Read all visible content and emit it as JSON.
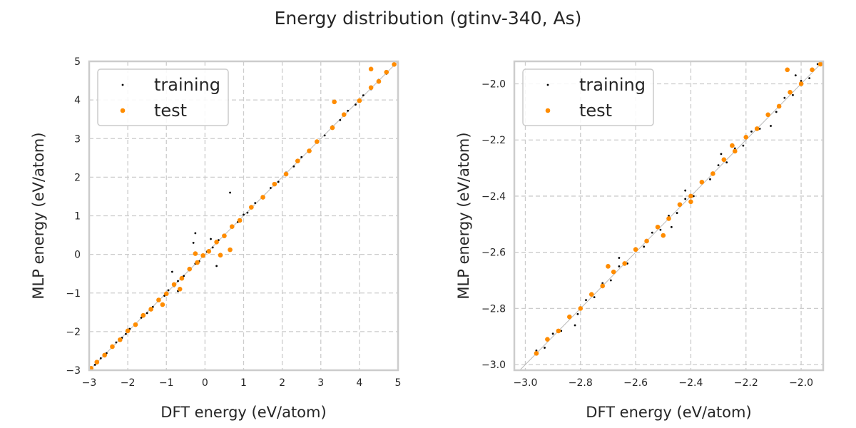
{
  "figure": {
    "title": "Energy distribution (gtinv-340, As)"
  },
  "chart_data": [
    {
      "type": "scatter",
      "xlabel": "DFT energy (eV/atom)",
      "ylabel": "MLP energy (eV/atom)",
      "xlim": [
        -3,
        5
      ],
      "ylim": [
        -3,
        5
      ],
      "xticks": [
        "−3",
        "−2",
        "−1",
        "0",
        "1",
        "2",
        "3",
        "4",
        "5"
      ],
      "yticks": [
        "−3",
        "−2",
        "−1",
        "0",
        "1",
        "2",
        "3",
        "4",
        "5"
      ],
      "grid": true,
      "legend": "upper-left",
      "series": [
        {
          "name": "training",
          "color": "#000000",
          "marker_size": "small",
          "x": [
            -2.95,
            -2.85,
            -2.7,
            -2.55,
            -2.4,
            -2.3,
            -2.15,
            -2.05,
            -1.95,
            -1.8,
            -1.65,
            -1.5,
            -1.35,
            -1.2,
            -1.05,
            -0.95,
            -0.8,
            -0.7,
            -0.55,
            -0.4,
            -0.25,
            -0.15,
            0.05,
            0.2,
            0.35,
            0.5,
            0.7,
            0.85,
            1.0,
            1.1,
            1.3,
            1.5,
            1.7,
            1.9,
            2.1,
            2.3,
            2.5,
            2.7,
            2.9,
            3.1,
            3.3,
            3.5,
            3.7,
            3.9,
            4.1,
            4.3,
            4.5,
            4.7,
            4.9,
            -0.25,
            -0.7,
            0.3,
            0.65,
            -0.85,
            0.15,
            -0.3
          ],
          "y": [
            -2.94,
            -2.86,
            -2.69,
            -2.56,
            -2.41,
            -2.28,
            -2.16,
            -2.06,
            -1.93,
            -1.82,
            -1.64,
            -1.52,
            -1.36,
            -1.18,
            -1.07,
            -0.93,
            -0.82,
            -0.69,
            -0.56,
            -0.41,
            -0.24,
            -0.18,
            0.07,
            0.18,
            0.37,
            0.48,
            0.72,
            0.84,
            1.03,
            1.08,
            1.33,
            1.48,
            1.72,
            1.88,
            2.12,
            2.28,
            2.52,
            2.68,
            2.92,
            3.08,
            3.32,
            3.48,
            3.72,
            3.88,
            4.12,
            4.28,
            4.52,
            4.68,
            4.92,
            0.55,
            -0.95,
            -0.3,
            1.6,
            -0.45,
            0.4,
            0.3
          ]
        },
        {
          "name": "test",
          "color": "#ff8c00",
          "marker_size": "large",
          "x": [
            -2.95,
            -2.8,
            -2.6,
            -2.4,
            -2.2,
            -2.0,
            -1.8,
            -1.6,
            -1.4,
            -1.2,
            -1.0,
            -0.8,
            -0.6,
            -0.4,
            -0.2,
            -0.05,
            0.1,
            0.3,
            0.5,
            0.7,
            0.9,
            1.2,
            1.5,
            1.8,
            2.1,
            2.4,
            2.7,
            2.9,
            3.3,
            3.6,
            4.0,
            4.3,
            4.5,
            4.7,
            4.9,
            -0.25,
            0.65,
            0.4,
            4.3,
            3.35,
            -1.1,
            -0.65
          ],
          "y": [
            -2.95,
            -2.79,
            -2.61,
            -2.39,
            -2.21,
            -1.98,
            -1.82,
            -1.58,
            -1.42,
            -1.18,
            -1.02,
            -0.78,
            -0.62,
            -0.38,
            -0.21,
            -0.03,
            0.08,
            0.32,
            0.48,
            0.72,
            0.88,
            1.22,
            1.48,
            1.82,
            2.08,
            2.42,
            2.68,
            2.92,
            3.28,
            3.62,
            3.98,
            4.32,
            4.48,
            4.72,
            4.92,
            0.02,
            0.12,
            -0.02,
            4.8,
            3.95,
            -1.3,
            -0.9
          ]
        }
      ]
    },
    {
      "type": "scatter",
      "xlabel": "DFT energy (eV/atom)",
      "ylabel": "MLP energy (eV/atom)",
      "xlim": [
        -3.04,
        -1.92
      ],
      "ylim": [
        -3.02,
        -1.92
      ],
      "xticks": [
        "−3.0",
        "−2.8",
        "−2.6",
        "−2.4",
        "−2.2",
        "−2.0"
      ],
      "yticks": [
        "−3.0",
        "−2.8",
        "−2.6",
        "−2.4",
        "−2.2",
        "−2.0"
      ],
      "grid": true,
      "legend": "upper-left",
      "series": [
        {
          "name": "training",
          "color": "#000000",
          "marker_size": "small",
          "x": [
            -2.96,
            -2.93,
            -2.9,
            -2.87,
            -2.84,
            -2.81,
            -2.78,
            -2.75,
            -2.72,
            -2.69,
            -2.66,
            -2.63,
            -2.6,
            -2.57,
            -2.54,
            -2.51,
            -2.48,
            -2.45,
            -2.42,
            -2.39,
            -2.36,
            -2.33,
            -2.3,
            -2.27,
            -2.24,
            -2.21,
            -2.18,
            -2.15,
            -2.12,
            -2.09,
            -2.06,
            -2.03,
            -2.0,
            -1.97,
            -1.94,
            -2.82,
            -2.66,
            -2.47,
            -2.29,
            -2.11,
            -2.02,
            -2.42
          ],
          "y": [
            -2.95,
            -2.94,
            -2.89,
            -2.88,
            -2.83,
            -2.82,
            -2.77,
            -2.76,
            -2.71,
            -2.7,
            -2.65,
            -2.64,
            -2.59,
            -2.58,
            -2.53,
            -2.52,
            -2.47,
            -2.46,
            -2.41,
            -2.4,
            -2.35,
            -2.34,
            -2.29,
            -2.28,
            -2.23,
            -2.22,
            -2.17,
            -2.16,
            -2.11,
            -2.1,
            -2.05,
            -2.04,
            -1.99,
            -1.98,
            -1.93,
            -2.86,
            -2.62,
            -2.51,
            -2.25,
            -2.15,
            -1.97,
            -2.38
          ]
        },
        {
          "name": "test",
          "color": "#ff8c00",
          "marker_size": "large",
          "x": [
            -2.96,
            -2.92,
            -2.88,
            -2.84,
            -2.8,
            -2.76,
            -2.72,
            -2.68,
            -2.64,
            -2.6,
            -2.56,
            -2.52,
            -2.48,
            -2.44,
            -2.4,
            -2.36,
            -2.32,
            -2.28,
            -2.24,
            -2.2,
            -2.16,
            -2.12,
            -2.08,
            -2.04,
            -2.0,
            -1.96,
            -1.93,
            -2.4,
            -2.25,
            -2.05,
            -2.7,
            -2.5
          ],
          "y": [
            -2.96,
            -2.91,
            -2.88,
            -2.83,
            -2.8,
            -2.75,
            -2.72,
            -2.67,
            -2.64,
            -2.59,
            -2.56,
            -2.51,
            -2.48,
            -2.43,
            -2.4,
            -2.35,
            -2.32,
            -2.27,
            -2.24,
            -2.19,
            -2.16,
            -2.11,
            -2.08,
            -2.03,
            -2.0,
            -1.95,
            -1.93,
            -2.42,
            -2.22,
            -1.95,
            -2.65,
            -2.54
          ]
        }
      ]
    }
  ]
}
